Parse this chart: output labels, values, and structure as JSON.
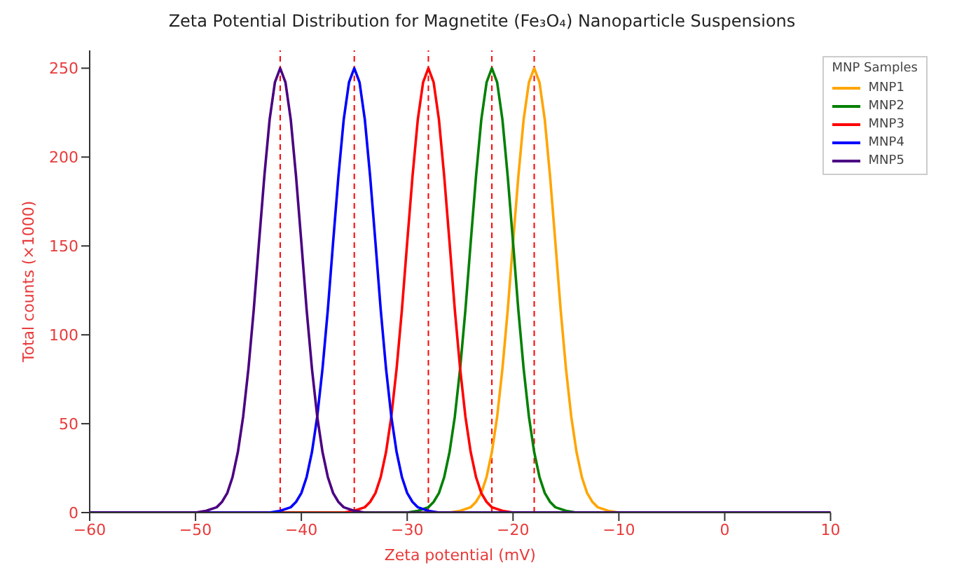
{
  "chart_data": {
    "type": "line",
    "title": "Zeta Potential Distribution for Magnetite (Fe₃O₄) Nanoparticle Suspensions",
    "xlabel": "Zeta potential (mV)",
    "ylabel": "Total counts (×1000)",
    "legend_title": "MNP Samples",
    "legend": "top right",
    "grid": false,
    "marker": "none",
    "line_style": "solid",
    "xlim": [
      -60,
      10
    ],
    "xticks": [
      -60,
      -50,
      -40,
      -30,
      -20,
      -10,
      0,
      10
    ],
    "ylim": [
      0,
      260
    ],
    "yticks": [
      0,
      50,
      100,
      150,
      200,
      250
    ],
    "series": [
      {
        "name": "MNP1",
        "color": "#ffa500",
        "x": [
          -60,
          -26,
          -25,
          -24,
          -23.5,
          -23,
          -22.5,
          -22,
          -21.5,
          -21,
          -20.5,
          -20,
          -19.5,
          -19,
          -18.5,
          -18,
          -17.5,
          -17,
          -16.5,
          -16,
          -15.5,
          -15,
          -14.5,
          -14,
          -13.5,
          -13,
          -12.5,
          -12,
          -11,
          -10,
          10
        ],
        "values": [
          0,
          0,
          1,
          3,
          6,
          11,
          20,
          34,
          54,
          81,
          114,
          152,
          189,
          221,
          242,
          250,
          242,
          221,
          189,
          152,
          114,
          81,
          54,
          34,
          20,
          11,
          6,
          3,
          1,
          0,
          0
        ]
      },
      {
        "name": "MNP2",
        "color": "#008000",
        "x": [
          -60,
          -30,
          -29,
          -28,
          -27.5,
          -27,
          -26.5,
          -26,
          -25.5,
          -25,
          -24.5,
          -24,
          -23.5,
          -23,
          -22.5,
          -22,
          -21.5,
          -21,
          -20.5,
          -20,
          -19.5,
          -19,
          -18.5,
          -18,
          -17.5,
          -17,
          -16.5,
          -16,
          -15,
          -14,
          10
        ],
        "values": [
          0,
          0,
          1,
          3,
          6,
          11,
          20,
          34,
          54,
          81,
          114,
          152,
          189,
          221,
          242,
          250,
          242,
          221,
          189,
          152,
          114,
          81,
          54,
          34,
          20,
          11,
          6,
          3,
          1,
          0,
          0
        ]
      },
      {
        "name": "MNP3",
        "color": "#ff0000",
        "x": [
          -60,
          -36,
          -35,
          -34,
          -33.5,
          -33,
          -32.5,
          -32,
          -31.5,
          -31,
          -30.5,
          -30,
          -29.5,
          -29,
          -28.5,
          -28,
          -27.5,
          -27,
          -26.5,
          -26,
          -25.5,
          -25,
          -24.5,
          -24,
          -23.5,
          -23,
          -22.5,
          -22,
          -21,
          -20,
          10
        ],
        "values": [
          0,
          0,
          1,
          3,
          6,
          11,
          20,
          34,
          54,
          81,
          114,
          152,
          189,
          221,
          242,
          250,
          242,
          221,
          189,
          152,
          114,
          81,
          54,
          34,
          20,
          11,
          6,
          3,
          1,
          0,
          0
        ]
      },
      {
        "name": "MNP4",
        "color": "#0000ff",
        "x": [
          -60,
          -43,
          -42,
          -41,
          -40.5,
          -40,
          -39.5,
          -39,
          -38.5,
          -38,
          -37.5,
          -37,
          -36.5,
          -36,
          -35.5,
          -35,
          -34.5,
          -34,
          -33.5,
          -33,
          -32.5,
          -32,
          -31.5,
          -31,
          -30.5,
          -30,
          -29.5,
          -29,
          -28,
          -27,
          10
        ],
        "values": [
          0,
          0,
          1,
          3,
          6,
          11,
          20,
          34,
          54,
          81,
          114,
          152,
          189,
          221,
          242,
          250,
          242,
          221,
          189,
          152,
          114,
          81,
          54,
          34,
          20,
          11,
          6,
          3,
          1,
          0,
          0
        ]
      },
      {
        "name": "MNP5",
        "color": "#4b0082",
        "x": [
          -60,
          -50,
          -49,
          -48,
          -47.5,
          -47,
          -46.5,
          -46,
          -45.5,
          -45,
          -44.5,
          -44,
          -43.5,
          -43,
          -42.5,
          -42,
          -41.5,
          -41,
          -40.5,
          -40,
          -39.5,
          -39,
          -38.5,
          -38,
          -37.5,
          -37,
          -36.5,
          -36,
          -35,
          -34,
          10
        ],
        "values": [
          0,
          0,
          1,
          3,
          6,
          11,
          20,
          34,
          54,
          81,
          114,
          152,
          189,
          221,
          242,
          250,
          242,
          221,
          189,
          152,
          114,
          81,
          54,
          34,
          20,
          11,
          6,
          3,
          1,
          0,
          0
        ]
      }
    ],
    "ref_lines": [
      {
        "axis": "x",
        "value": -18,
        "color": "#ff0000",
        "line_style": "dashed"
      },
      {
        "axis": "x",
        "value": -22,
        "color": "#ff0000",
        "line_style": "dashed"
      },
      {
        "axis": "x",
        "value": -28,
        "color": "#ff0000",
        "line_style": "dashed"
      },
      {
        "axis": "x",
        "value": -35,
        "color": "#ff0000",
        "line_style": "dashed"
      },
      {
        "axis": "x",
        "value": -42,
        "color": "#ff0000",
        "line_style": "dashed"
      }
    ]
  }
}
